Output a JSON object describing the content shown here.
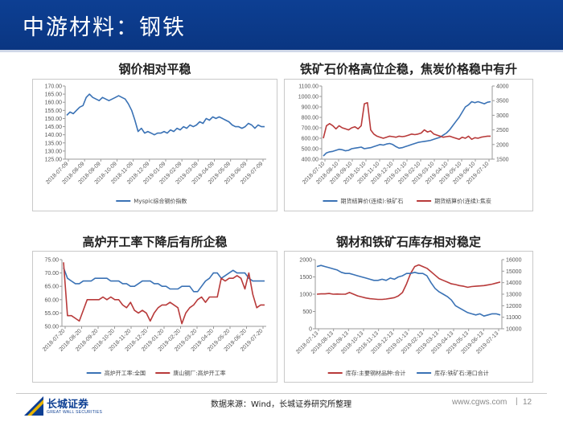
{
  "header": {
    "title": "中游材料：钢铁"
  },
  "panels": [
    {
      "title": "钢价相对平稳"
    },
    {
      "title": "铁矿石价格高位企稳，焦炭价格稳中有升"
    },
    {
      "title": "高炉开工率下降后有所企稳"
    },
    {
      "title": "钢材和铁矿石库存相对稳定"
    }
  ],
  "footer": {
    "logo_cn": "长城证券",
    "logo_en": "GREAT WALL SECURITIES",
    "source": "数据来源：Wind，长城证券研究所整理",
    "site": "www.cgws.com",
    "sep": "|",
    "page": "12"
  },
  "colors": {
    "blue": "#3a72b5",
    "red": "#b83a3a",
    "header": "#0d3f93"
  },
  "chart_data": [
    {
      "type": "line",
      "title": "钢价相对平稳",
      "x_ticks": [
        "2018-07-09",
        "2018-08-09",
        "2018-09-09",
        "2018-10-09",
        "2018-11-09",
        "2018-12-09",
        "2019-01-09",
        "2019-02-09",
        "2019-03-09",
        "2019-04-09",
        "2019-05-09",
        "2019-06-09",
        "2019-07-09"
      ],
      "y_ticks": [
        "125.00",
        "130.00",
        "135.00",
        "140.00",
        "145.00",
        "150.00",
        "155.00",
        "160.00",
        "165.00",
        "170.00"
      ],
      "ylim": [
        125,
        170
      ],
      "series": [
        {
          "name": "Myspic综合钢价指数",
          "color": "#3a72b5",
          "values": [
            152,
            154,
            153,
            155,
            157,
            158,
            163,
            165,
            163,
            162,
            161,
            163,
            162,
            161,
            162,
            163,
            164,
            163,
            162,
            159,
            155,
            149,
            142,
            144,
            141,
            142,
            141,
            140,
            141,
            141,
            142,
            141,
            143,
            142,
            144,
            143,
            145,
            144,
            146,
            145,
            146,
            148,
            147,
            150,
            149,
            151,
            150,
            151,
            150,
            149,
            148,
            146,
            145,
            145,
            144,
            145,
            147,
            146,
            144,
            146,
            145,
            145
          ]
        }
      ]
    },
    {
      "type": "line",
      "title": "铁矿石价格高位企稳，焦炭价格稳中有升",
      "x_ticks": [
        "2018-07-10",
        "2018-08-10",
        "2018-09-10",
        "2018-10-10",
        "2018-11-10",
        "2018-12-10",
        "2019-01-10",
        "2019-02-10",
        "2019-03-10",
        "2019-04-10",
        "2019-05-10",
        "2019-06-10",
        "2019-07-10"
      ],
      "y_left_ticks": [
        "400.00",
        "500.00",
        "600.00",
        "700.00",
        "800.00",
        "900.00",
        "1000.00",
        "1100.00"
      ],
      "y_right_ticks": [
        "1500",
        "2000",
        "2500",
        "3000",
        "3500",
        "4000"
      ],
      "ylim_left": [
        400,
        1100
      ],
      "ylim_right": [
        1500,
        4000
      ],
      "series": [
        {
          "name": "期货结算价(连续):铁矿石",
          "axis": "left",
          "color": "#3a72b5",
          "values": [
            430,
            460,
            470,
            475,
            485,
            495,
            490,
            480,
            485,
            500,
            505,
            510,
            515,
            500,
            505,
            510,
            520,
            530,
            540,
            535,
            545,
            550,
            540,
            520,
            505,
            510,
            520,
            530,
            540,
            550,
            560,
            565,
            570,
            575,
            580,
            590,
            600,
            610,
            630,
            650,
            680,
            720,
            760,
            800,
            850,
            900,
            920,
            950,
            940,
            950,
            940,
            930,
            945,
            950
          ]
        },
        {
          "name": "期货结算价(连续):焦炭",
          "axis": "left",
          "color": "#b83a3a",
          "values": [
            600,
            720,
            740,
            720,
            690,
            720,
            700,
            690,
            680,
            700,
            710,
            690,
            720,
            930,
            940,
            680,
            640,
            620,
            610,
            600,
            610,
            620,
            615,
            610,
            620,
            615,
            620,
            630,
            640,
            635,
            640,
            650,
            680,
            660,
            670,
            640,
            630,
            620,
            610,
            615,
            620,
            610,
            600,
            590,
            610,
            600,
            620,
            590,
            605,
            600,
            610,
            615,
            620,
            620
          ]
        }
      ]
    },
    {
      "type": "line",
      "title": "高炉开工率下降后有所企稳",
      "x_ticks": [
        "2018-07-20",
        "2018-08-20",
        "2018-09-20",
        "2018-10-20",
        "2018-11-20",
        "2018-12-20",
        "2019-01-20",
        "2019-02-20",
        "2019-03-20",
        "2019-04-20",
        "2019-05-20",
        "2019-06-20",
        "2019-07-20"
      ],
      "y_ticks": [
        "50.00",
        "55.00",
        "60.00",
        "65.00",
        "70.00",
        "75.00"
      ],
      "ylim": [
        50,
        75
      ],
      "series": [
        {
          "name": "高炉开工率:全国",
          "color": "#3a72b5",
          "values": [
            72,
            68,
            67,
            66,
            66,
            67,
            67,
            67,
            68,
            68,
            68,
            68,
            67,
            67,
            67,
            66,
            66,
            65,
            65,
            66,
            67,
            67,
            67,
            66,
            66,
            65,
            65,
            64,
            64,
            64,
            65,
            65,
            65,
            63,
            63,
            65,
            67,
            68,
            70,
            70,
            68,
            69,
            70,
            71,
            70,
            70,
            70,
            68,
            67,
            67,
            67,
            67
          ]
        },
        {
          "name": "唐山钢厂:高炉开工率",
          "color": "#b83a3a",
          "values": [
            74,
            54,
            54,
            53,
            52,
            56,
            60,
            60,
            60,
            60,
            61,
            60,
            61,
            60,
            60,
            58,
            57,
            59,
            56,
            55,
            56,
            55,
            52,
            55,
            57,
            58,
            58,
            59,
            58,
            57,
            51,
            55,
            57,
            58,
            60,
            61,
            59,
            61,
            61,
            61,
            68,
            67,
            68,
            68,
            69,
            68,
            64,
            70,
            62,
            57,
            58,
            58
          ]
        }
      ]
    },
    {
      "type": "line",
      "title": "钢材和铁矿石库存相对稳定",
      "x_ticks": [
        "2018-07-13",
        "2018-08-13",
        "2018-09-13",
        "2018-10-13",
        "2018-11-13",
        "2018-12-13",
        "2019-01-13",
        "2019-02-13",
        "2019-03-13",
        "2019-04-13",
        "2019-05-13",
        "2019-06-13",
        "2019-07-13"
      ],
      "y_left_ticks": [
        "0",
        "500",
        "1000",
        "1500",
        "2000"
      ],
      "y_right_ticks": [
        "10000",
        "11000",
        "12000",
        "13000",
        "14000",
        "15000",
        "16000"
      ],
      "ylim_left": [
        0,
        2000
      ],
      "ylim_right": [
        10000,
        16000
      ],
      "series": [
        {
          "name": "库存:主要钢材品种:合计",
          "axis": "left",
          "color": "#b83a3a",
          "values": [
            1000,
            1010,
            1010,
            1020,
            1000,
            1005,
            1000,
            1000,
            1050,
            1000,
            950,
            920,
            890,
            870,
            860,
            850,
            850,
            860,
            880,
            900,
            950,
            1050,
            1300,
            1600,
            1800,
            1850,
            1800,
            1750,
            1650,
            1550,
            1450,
            1400,
            1350,
            1300,
            1280,
            1250,
            1230,
            1200,
            1220,
            1230,
            1240,
            1250,
            1270,
            1290,
            1320,
            1350
          ]
        },
        {
          "name": "库存:铁矿石:港口合计",
          "axis": "right",
          "color": "#3a72b5",
          "values": [
            15400,
            15500,
            15400,
            15300,
            15200,
            15100,
            14900,
            14800,
            14800,
            14700,
            14600,
            14500,
            14400,
            14300,
            14200,
            14200,
            14300,
            14200,
            14400,
            14300,
            14500,
            14600,
            14800,
            14800,
            14900,
            14800,
            14800,
            14600,
            14000,
            13500,
            13200,
            13000,
            12800,
            12500,
            12000,
            11800,
            11600,
            11400,
            11300,
            11200,
            11300,
            11100,
            11200,
            11300,
            11300,
            11200
          ]
        }
      ]
    }
  ]
}
